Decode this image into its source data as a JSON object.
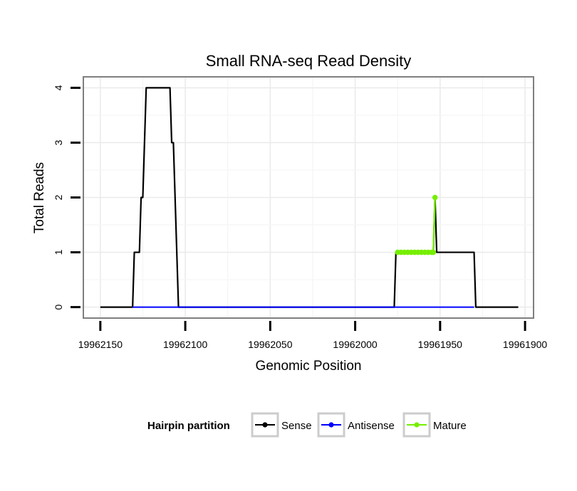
{
  "chart_data": {
    "type": "line",
    "title": "Small RNA-seq Read Density",
    "xlabel": "Genomic Position",
    "ylabel": "Total Reads",
    "xlim": [
      19962160,
      19961895
    ],
    "ylim": [
      -0.2,
      4.2
    ],
    "x_reversed": true,
    "grid": true,
    "x_ticks": [
      19962150,
      19962100,
      19962050,
      19962000,
      19961950,
      19961900
    ],
    "x_tick_labels": [
      "19962150",
      "19962100",
      "19962050",
      "19962000",
      "19961950",
      "19961900"
    ],
    "y_ticks": [
      0,
      1,
      2,
      3,
      4
    ],
    "y_tick_labels": [
      "0",
      "1",
      "2",
      "3",
      "4"
    ],
    "legend": {
      "title": "Hairpin partition",
      "position": "bottom",
      "entries": [
        {
          "name": "Sense",
          "color": "#000000"
        },
        {
          "name": "Antisense",
          "color": "#0000ff"
        },
        {
          "name": "Mature",
          "color": "#76ee00"
        }
      ]
    },
    "series": [
      {
        "name": "Sense",
        "color": "#000000",
        "points": [
          [
            19962150,
            0
          ],
          [
            19962131,
            0
          ],
          [
            19962130,
            1
          ],
          [
            19962127,
            1
          ],
          [
            19962126,
            2
          ],
          [
            19962125,
            2
          ],
          [
            19962123,
            4
          ],
          [
            19962109,
            4
          ],
          [
            19962108,
            3
          ],
          [
            19962107,
            3
          ],
          [
            19962105,
            1
          ],
          [
            19962104,
            0
          ],
          [
            19962078,
            0
          ],
          [
            19962053,
            0
          ],
          [
            19962030,
            0
          ],
          [
            19962013,
            0
          ],
          [
            19961977,
            0
          ],
          [
            19961976,
            1
          ],
          [
            19961954,
            1
          ],
          [
            19961953,
            2
          ],
          [
            19961952,
            1
          ],
          [
            19961930,
            1
          ],
          [
            19961929,
            0
          ],
          [
            19961904,
            0
          ]
        ]
      },
      {
        "name": "Antisense",
        "color": "#0000ff",
        "points": [
          [
            19962131,
            0
          ],
          [
            19962104,
            0
          ],
          [
            19961976,
            0
          ],
          [
            19961930,
            0
          ]
        ]
      },
      {
        "name": "Mature",
        "color": "#76ee00",
        "points": [
          [
            19961975,
            1
          ],
          [
            19961973,
            1
          ],
          [
            19961971,
            1
          ],
          [
            19961969,
            1
          ],
          [
            19961967,
            1
          ],
          [
            19961965,
            1
          ],
          [
            19961963,
            1
          ],
          [
            19961961,
            1
          ],
          [
            19961959,
            1
          ],
          [
            19961957,
            1
          ],
          [
            19961955,
            1
          ],
          [
            19961954,
            1
          ],
          [
            19961953,
            2
          ]
        ]
      }
    ]
  }
}
